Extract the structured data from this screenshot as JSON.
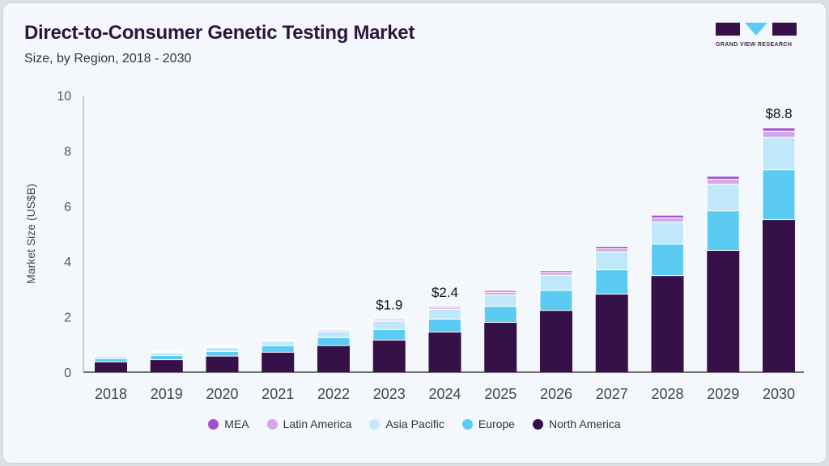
{
  "header": {
    "title": "Direct-to-Consumer Genetic Testing Market",
    "subtitle": "Size, by Region, 2018 - 2030",
    "logo_text": "GRAND VIEW RESEARCH"
  },
  "chart_data": {
    "type": "bar",
    "stacked": true,
    "ylabel": "Market Size (US$B)",
    "xlabel": "",
    "ylim": [
      0,
      10
    ],
    "yticks": [
      0,
      2,
      4,
      6,
      8,
      10
    ],
    "grid": false,
    "legend_position": "bottom",
    "categories": [
      "2018",
      "2019",
      "2020",
      "2021",
      "2022",
      "2023",
      "2024",
      "2025",
      "2026",
      "2027",
      "2028",
      "2029",
      "2030"
    ],
    "series": [
      {
        "name": "North America",
        "color": "#361048",
        "values": [
          0.37,
          0.45,
          0.58,
          0.72,
          0.96,
          1.16,
          1.45,
          1.8,
          2.23,
          2.82,
          3.49,
          4.4,
          5.51
        ]
      },
      {
        "name": "Europe",
        "color": "#5ccbf4",
        "values": [
          0.12,
          0.15,
          0.17,
          0.24,
          0.29,
          0.38,
          0.47,
          0.58,
          0.73,
          0.88,
          1.14,
          1.43,
          1.81
        ]
      },
      {
        "name": "Asia Pacific",
        "color": "#bfe9fa",
        "values": [
          0.09,
          0.11,
          0.14,
          0.16,
          0.23,
          0.3,
          0.35,
          0.41,
          0.54,
          0.65,
          0.8,
          0.96,
          1.17
        ]
      },
      {
        "name": "Latin America",
        "color": "#d4a8e8",
        "values": [
          0.02,
          0.02,
          0.03,
          0.03,
          0.04,
          0.04,
          0.06,
          0.1,
          0.1,
          0.11,
          0.15,
          0.18,
          0.22
        ]
      },
      {
        "name": "MEA",
        "color": "#a24fcf",
        "values": [
          0.01,
          0.01,
          0.01,
          0.02,
          0.03,
          0.04,
          0.04,
          0.06,
          0.06,
          0.08,
          0.09,
          0.11,
          0.12
        ]
      }
    ],
    "annotations": [
      {
        "category": "2023",
        "text": "$1.9"
      },
      {
        "category": "2024",
        "text": "$2.4"
      },
      {
        "category": "2030",
        "text": "$8.8"
      }
    ],
    "legend_order": [
      "MEA",
      "Latin America",
      "Asia Pacific",
      "Europe",
      "North America"
    ]
  }
}
